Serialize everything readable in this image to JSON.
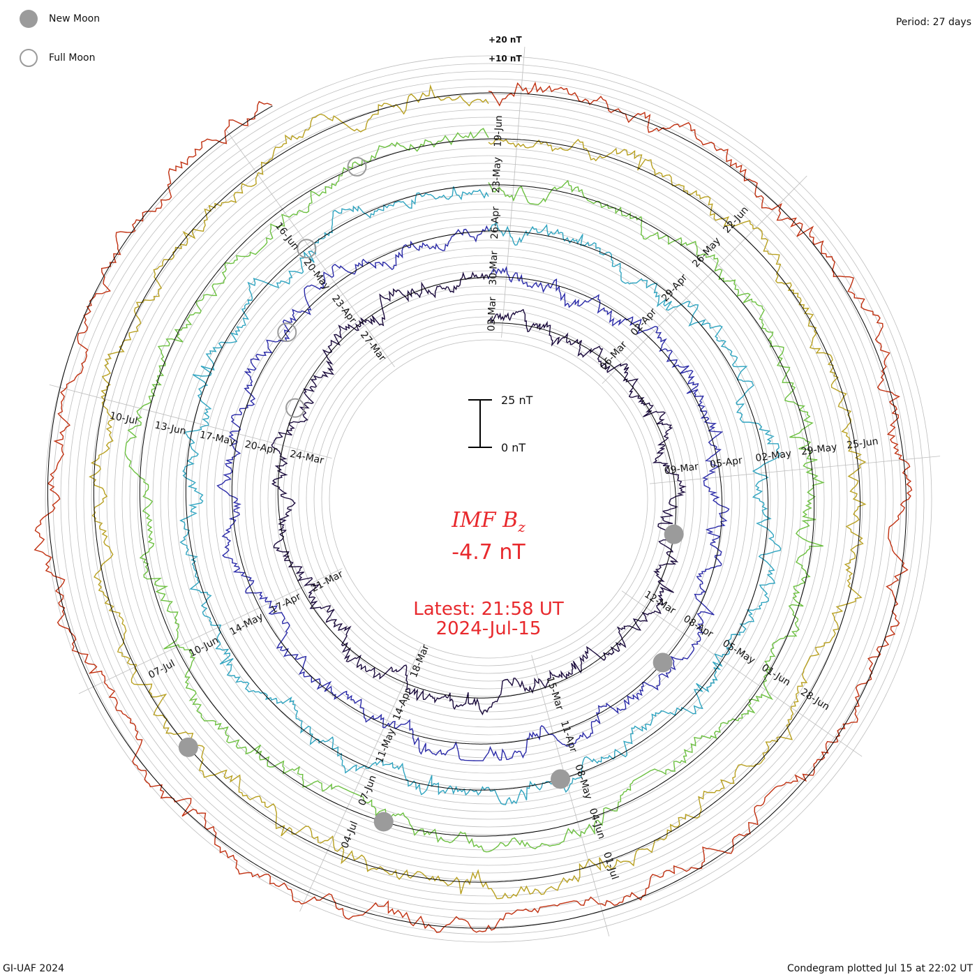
{
  "legend": {
    "new_moon_label": "New Moon",
    "full_moon_label": "Full Moon"
  },
  "period_label": "Period: 27 days",
  "footer": {
    "left": "GI-UAF 2024",
    "right": "Condegram plotted Jul 15 at 22:02 UT"
  },
  "center": {
    "quantity": "IMF B",
    "quantity_subscript": "z",
    "value": "-4.7 nT",
    "latest": "Latest: 21:58 UT",
    "date": "2024-Jul-15"
  },
  "scale_bar": {
    "top_label": "25 nT",
    "bottom_label": "0 nT"
  },
  "ring_scale": {
    "upper": "+20 nT",
    "lower": "+10 nT"
  },
  "colors": {
    "text_red": "#e8292d",
    "moon_gray": "#9b9b9b",
    "grid_gray": "#bdbdbd",
    "baseline": "#000000"
  },
  "chart_data": {
    "type": "line",
    "title": "IMF Bz condegram",
    "period_days": 27,
    "units": "nT",
    "rings": [
      {
        "cycle": 1,
        "color": "#1a0a3c",
        "date_labels": [
          "03-Mar",
          "06-Mar",
          "09-Mar",
          "12-Mar",
          "15-Mar",
          "18-Mar",
          "21-Mar",
          "24-Mar",
          "27-Mar"
        ]
      },
      {
        "cycle": 2,
        "color": "#2a2aa8",
        "date_labels": [
          "30-Mar",
          "02-Apr",
          "05-Apr",
          "08-Apr",
          "11-Apr",
          "14-Apr",
          "17-Apr",
          "20-Apr",
          "23-Apr"
        ]
      },
      {
        "cycle": 3,
        "color": "#2fa4c0",
        "date_labels": [
          "26-Apr",
          "29-Apr",
          "02-May",
          "05-May",
          "08-May",
          "11-May",
          "14-May",
          "17-May",
          "20-May"
        ]
      },
      {
        "cycle": 4,
        "color": "#6cc040",
        "date_labels": [
          "23-May",
          "26-May",
          "29-May",
          "01-Jun",
          "04-Jun",
          "07-Jun",
          "10-Jun",
          "13-Jun",
          "16-Jun"
        ]
      },
      {
        "cycle": 5,
        "color": "#b8a020",
        "date_labels": [
          "19-Jun",
          "22-Jun",
          "25-Jun",
          "28-Jun",
          "01-Jul",
          "04-Jul",
          "07-Jul",
          "10-Jul"
        ]
      },
      {
        "cycle": 6,
        "color": "#c03010",
        "date_labels": []
      }
    ],
    "new_moons": [
      "09-Mar",
      "08-Apr",
      "08-May",
      "06-Jun",
      "05-Jul"
    ],
    "full_moons": [
      "25-Mar",
      "23-Apr",
      "23-May",
      "22-Jun"
    ],
    "latest_value_nT": -4.7
  }
}
